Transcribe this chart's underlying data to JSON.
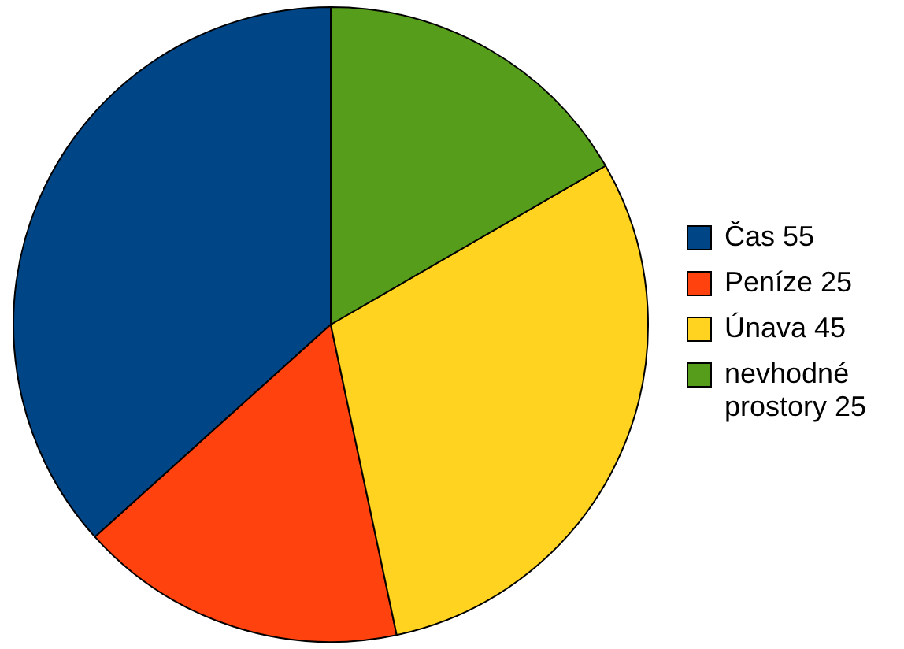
{
  "chart_data": {
    "type": "pie",
    "categories": [
      "Čas 55",
      "Peníze 25",
      "Únava 45",
      "nevhodné prostory 25"
    ],
    "values": [
      55,
      25,
      45,
      25
    ],
    "colors": [
      "#004586",
      "#ff420e",
      "#ffd320",
      "#579d1c"
    ],
    "legend": "right"
  }
}
